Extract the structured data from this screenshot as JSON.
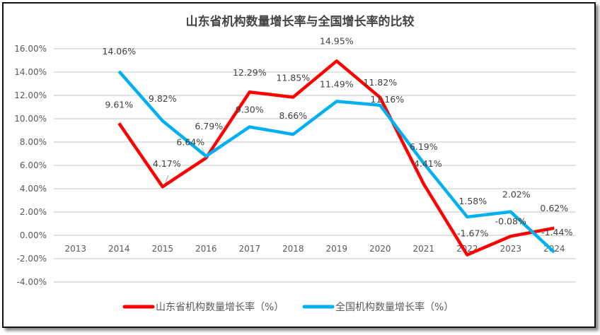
{
  "chart_data": {
    "type": "line",
    "title": "山东省机构数量增长率与全国增长率的比较",
    "categories": [
      "2013",
      "2014",
      "2015",
      "2016",
      "2017",
      "2018",
      "2019",
      "2020",
      "2021",
      "2022",
      "2023",
      "2024"
    ],
    "y_ticks": [
      "16.00%",
      "14.00%",
      "12.00%",
      "10.00%",
      "8.00%",
      "6.00%",
      "4.00%",
      "2.00%",
      "0.00%",
      "-2.00%",
      "-4.00%"
    ],
    "ylim": [
      -4,
      16
    ],
    "grid": true,
    "legend_position": "bottom",
    "series": [
      {
        "name": "山东省机构数量增长率（%）",
        "color": "#ff0000",
        "values": [
          null,
          9.61,
          4.17,
          6.64,
          12.29,
          11.85,
          14.95,
          11.82,
          4.41,
          -1.67,
          -0.08,
          0.62
        ],
        "labels": [
          null,
          "9.61%",
          "4.17%",
          "6.64%",
          "12.29%",
          "11.85%",
          "14.95%",
          "11.82%",
          "4.41%",
          "-1.67%",
          "-0.08%",
          "0.62%"
        ]
      },
      {
        "name": "全国机构数量增长率（%）",
        "color": "#00b0f0",
        "values": [
          null,
          14.06,
          9.82,
          6.79,
          9.3,
          8.66,
          11.49,
          11.16,
          6.19,
          1.58,
          2.02,
          -1.44
        ],
        "labels": [
          null,
          "14.06%",
          "9.82%",
          "6.79%",
          "9.30%",
          "8.66%",
          "11.49%",
          "11.16%",
          "6.19%",
          "1.58%",
          "2.02%",
          "-1.44%"
        ]
      }
    ]
  }
}
